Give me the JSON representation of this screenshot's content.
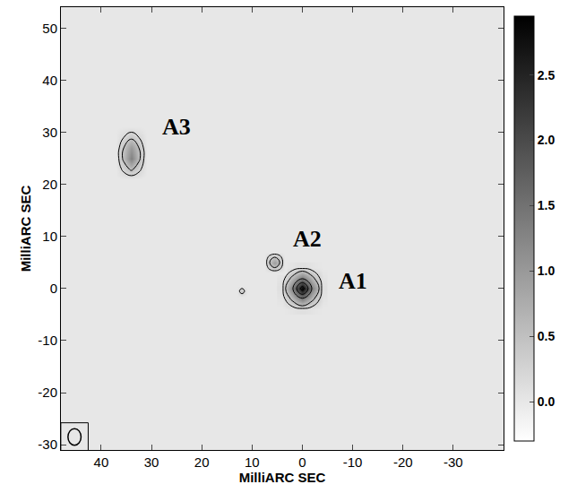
{
  "chart_data": {
    "type": "heatmap",
    "x_label": "MilliARC SEC",
    "y_label": "MilliARC SEC",
    "xlim": [
      48,
      -40
    ],
    "xticks": [
      40,
      30,
      20,
      10,
      0,
      -10,
      -20,
      -30
    ],
    "ylim": [
      -31,
      54
    ],
    "yticks": [
      -30,
      -20,
      -10,
      0,
      10,
      20,
      30,
      40,
      50
    ],
    "color_range": [
      -0.3,
      2.95
    ],
    "color_ticks": [
      {
        "value": 0,
        "label": "0.0"
      },
      {
        "value": 0.5,
        "label": "0.5"
      },
      {
        "value": 1,
        "label": "1.0"
      },
      {
        "value": 1.5,
        "label": "1.5"
      },
      {
        "value": 2,
        "label": "2.0"
      },
      {
        "value": 2.5,
        "label": "2.5"
      }
    ],
    "background": 0,
    "components": [
      {
        "x": [
          -4,
          -2,
          0,
          2,
          4
        ],
        "y": [
          -4,
          -2,
          0,
          2,
          4
        ],
        "cells": [
          [
            0,
            0.05,
            0.1,
            0.05,
            0
          ],
          [
            0.05,
            0.6,
            1.3,
            0.6,
            0.05
          ],
          [
            0.1,
            1.3,
            2.9,
            1.3,
            0.1
          ],
          [
            0.05,
            0.6,
            1.3,
            0.6,
            0.05
          ],
          [
            0,
            0.05,
            0.1,
            0.05,
            0
          ]
        ]
      },
      {
        "x": [
          3.5,
          4.5,
          5.5,
          6.5,
          7.5
        ],
        "y": [
          3,
          4,
          5,
          6,
          7
        ],
        "cells": [
          [
            0,
            0,
            0,
            0,
            0
          ],
          [
            0,
            0.3,
            0.5,
            0.3,
            0
          ],
          [
            0,
            0.5,
            0.95,
            0.5,
            0
          ],
          [
            0,
            0.3,
            0.5,
            0.3,
            0
          ],
          [
            0,
            0,
            0,
            0,
            0
          ]
        ]
      },
      {
        "x": [
          31,
          32.5,
          34,
          35.5,
          37
        ],
        "y": [
          21,
          23,
          25,
          27,
          29,
          31
        ],
        "cells": [
          [
            0,
            0,
            0,
            0,
            0
          ],
          [
            0,
            0.3,
            0.6,
            0.3,
            0
          ],
          [
            0,
            0.6,
            1.3,
            0.6,
            0
          ],
          [
            0,
            0.5,
            1.0,
            0.5,
            0
          ],
          [
            0,
            0.2,
            0.4,
            0.2,
            0
          ],
          [
            0,
            0,
            0,
            0,
            0
          ]
        ]
      },
      {
        "x": [
          11,
          12,
          13
        ],
        "y": [
          -1.5,
          -0.5,
          0.5
        ],
        "cells": [
          [
            0,
            0,
            0
          ],
          [
            0,
            0.4,
            0
          ],
          [
            0,
            0,
            0
          ]
        ]
      }
    ],
    "contour_levels": [
      0.2,
      0.5,
      1.4,
      2.0,
      2.6
    ],
    "annotations": [
      {
        "text": "A1",
        "x": -10,
        "y": 1.5
      },
      {
        "text": "A2",
        "x": -1,
        "y": 9.5
      },
      {
        "text": "A3",
        "x": 25,
        "y": 31
      }
    ],
    "beam": {
      "x": 45.3,
      "y": -28.5,
      "major": 3.2,
      "minor": 2.6
    }
  }
}
